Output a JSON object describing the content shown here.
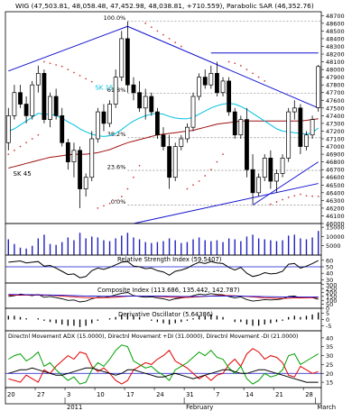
{
  "colors": {
    "up": "#ffffff",
    "down": "#000000",
    "sma_short": "#00c0e0",
    "sma_long": "#a01010",
    "sar": "#d04040",
    "trend": "#1010d0",
    "fib": "#888888",
    "volume": "#2020c0",
    "adx": "#000000",
    "di_plus": "#00a000",
    "di_minus": "#e00000"
  },
  "header": {
    "text": "WIG (47,503.81, 48,058.48, 47,452.98, 48,038.81, +710.559), Parabolic SAR (46,352.76)"
  },
  "main": {
    "labels": {
      "sma_short": "SK 15",
      "sma_long": "SK 45"
    },
    "fib_levels": [
      {
        "value": 48625,
        "label": "100.0%"
      },
      {
        "value": 47690,
        "label": "61.8%"
      },
      {
        "value": 47115,
        "label": "38.2%"
      },
      {
        "value": 46690,
        "label": "23.6%"
      },
      {
        "value": 46240,
        "label": "0.0%"
      }
    ]
  },
  "panels": {
    "rsi": {
      "title": "Relative Strength Index (59.5407)",
      "ticks": [
        "60",
        "50",
        "40",
        "30"
      ]
    },
    "cci": {
      "title": "Composite Index (113.686, 135.442, 142.787)",
      "ticks": [
        "300",
        "250",
        "200",
        "150",
        "100",
        "50",
        "0"
      ]
    },
    "dosc": {
      "title": "Derivative Oscillator (5.64386)",
      "ticks": [
        "5",
        "0",
        "-5"
      ]
    },
    "dmi": {
      "title": "Directnl Movement ADX (15.0000), Directnl Movement +DI (31.0000), Directnl Movement -DI (21.0000)",
      "ticks": [
        "40",
        "35",
        "30",
        "25",
        "20",
        "15"
      ]
    }
  },
  "xaxis": {
    "day_ticks": [
      {
        "i": 0,
        "label": "20"
      },
      {
        "i": 5,
        "label": "27"
      },
      {
        "i": 10,
        "label": "3"
      },
      {
        "i": 15,
        "label": "10"
      },
      {
        "i": 20,
        "label": "17"
      },
      {
        "i": 25,
        "label": "24"
      },
      {
        "i": 30,
        "label": "31"
      },
      {
        "i": 35,
        "label": "7"
      },
      {
        "i": 40,
        "label": "14"
      },
      {
        "i": 45,
        "label": "21"
      },
      {
        "i": 50,
        "label": "28"
      }
    ],
    "months": [
      {
        "i": 10,
        "label": "2011"
      },
      {
        "i": 30,
        "label": "February"
      },
      {
        "i": 52,
        "label": "March"
      }
    ]
  },
  "chart_data": {
    "type": "candlestick",
    "title": "WIG",
    "ylim": [
      46000,
      48750
    ],
    "yticks": [
      48700,
      48600,
      48500,
      48400,
      48300,
      48200,
      48100,
      48000,
      47900,
      47800,
      47700,
      47600,
      47500,
      47400,
      47300,
      47200,
      47100,
      47000,
      46900,
      46800,
      46700,
      46600,
      46500,
      46400,
      46300,
      46200,
      46100,
      46000
    ],
    "ohlc": [
      [
        47050,
        47500,
        46950,
        47400
      ],
      [
        47400,
        47800,
        47350,
        47700
      ],
      [
        47700,
        47800,
        47500,
        47550
      ],
      [
        47550,
        47650,
        47300,
        47400
      ],
      [
        47400,
        47850,
        47350,
        47800
      ],
      [
        47800,
        48050,
        47700,
        47950
      ],
      [
        47950,
        48000,
        47300,
        47350
      ],
      [
        47350,
        47700,
        47250,
        47650
      ],
      [
        47650,
        47750,
        47350,
        47400
      ],
      [
        47400,
        47500,
        47000,
        47050
      ],
      [
        47050,
        47100,
        46700,
        46800
      ],
      [
        46800,
        47050,
        46600,
        46950
      ],
      [
        46950,
        47000,
        46200,
        46450
      ],
      [
        46450,
        46650,
        46350,
        46600
      ],
      [
        46600,
        47200,
        46550,
        47100
      ],
      [
        47100,
        47500,
        47050,
        47450
      ],
      [
        47450,
        47550,
        47200,
        47300
      ],
      [
        47300,
        47600,
        47250,
        47550
      ],
      [
        47550,
        48000,
        47500,
        47900
      ],
      [
        47900,
        48500,
        47850,
        48400
      ],
      [
        48400,
        48625,
        47700,
        47800
      ],
      [
        47800,
        47900,
        47600,
        47700
      ],
      [
        47700,
        47850,
        47450,
        47500
      ],
      [
        47500,
        47750,
        47350,
        47650
      ],
      [
        47650,
        47700,
        47400,
        47450
      ],
      [
        47450,
        47500,
        47100,
        47150
      ],
      [
        47150,
        47250,
        46950,
        47000
      ],
      [
        47000,
        47150,
        46450,
        46600
      ],
      [
        46600,
        47050,
        46550,
        47000
      ],
      [
        47000,
        47150,
        46950,
        47100
      ],
      [
        47100,
        47300,
        47050,
        47250
      ],
      [
        47250,
        47700,
        47200,
        47650
      ],
      [
        47650,
        47950,
        47600,
        47900
      ],
      [
        47900,
        48000,
        47750,
        47800
      ],
      [
        47800,
        48050,
        47750,
        47950
      ],
      [
        47950,
        48100,
        47650,
        47700
      ],
      [
        47700,
        47900,
        47650,
        47850
      ],
      [
        47850,
        47900,
        47400,
        47450
      ],
      [
        47450,
        47500,
        47100,
        47150
      ],
      [
        47150,
        47400,
        47100,
        47350
      ],
      [
        47350,
        47500,
        46600,
        46700
      ],
      [
        46700,
        46900,
        46250,
        46400
      ],
      [
        46400,
        46650,
        46350,
        46600
      ],
      [
        46600,
        46900,
        46550,
        46850
      ],
      [
        46850,
        46950,
        46450,
        46550
      ],
      [
        46550,
        46700,
        46400,
        46650
      ],
      [
        46650,
        46900,
        46600,
        46850
      ],
      [
        46850,
        47500,
        46800,
        47450
      ],
      [
        47450,
        47600,
        47350,
        47500
      ],
      [
        47500,
        47550,
        46900,
        47000
      ],
      [
        47000,
        47200,
        46950,
        47150
      ],
      [
        47150,
        47400,
        47100,
        47350
      ],
      [
        47503.81,
        48058.48,
        47452.98,
        48038.81
      ]
    ],
    "sma15": [
      47200,
      47230,
      47280,
      47330,
      47380,
      47430,
      47420,
      47420,
      47400,
      47370,
      47320,
      47280,
      47230,
      47190,
      47160,
      47140,
      47130,
      47140,
      47170,
      47220,
      47280,
      47330,
      47370,
      47400,
      47420,
      47430,
      47420,
      47390,
      47370,
      47360,
      47360,
      47380,
      47420,
      47460,
      47500,
      47530,
      47550,
      47560,
      47550,
      47520,
      47480,
      47430,
      47380,
      47330,
      47280,
      47230,
      47200,
      47190,
      47180,
      47170,
      47160,
      47180,
      47240
    ],
    "sma45": [
      46720,
      46740,
      46760,
      46780,
      46800,
      46820,
      46840,
      46860,
      46870,
      46880,
      46890,
      46900,
      46900,
      46900,
      46910,
      46920,
      46940,
      46960,
      46990,
      47020,
      47050,
      47070,
      47090,
      47110,
      47130,
      47150,
      47160,
      47170,
      47180,
      47190,
      47200,
      47210,
      47230,
      47250,
      47270,
      47290,
      47300,
      47310,
      47320,
      47330,
      47330,
      47330,
      47330,
      47330,
      47330,
      47330,
      47330,
      47330,
      47330,
      47330,
      47340,
      47350,
      47360
    ],
    "sar": [
      46900,
      46950,
      47000,
      47050,
      47100,
      47150,
      48100,
      48080,
      48060,
      48040,
      48000,
      47960,
      47920,
      47880,
      47840,
      46200,
      46230,
      46260,
      46300,
      46350,
      46450,
      46600,
      46750,
      48600,
      48550,
      48500,
      48450,
      48400,
      48350,
      48300,
      46450,
      46500,
      46550,
      46620,
      46700,
      46800,
      46900,
      48100,
      48080,
      48050,
      48000,
      47950,
      47900,
      47850,
      46250,
      46280,
      46310,
      46340,
      46360,
      46380,
      46360,
      46355,
      46352.76
    ],
    "trendlines": [
      {
        "from": [
          0,
          47980
        ],
        "to": [
          20,
          48560
        ]
      },
      {
        "from": [
          20,
          48560
        ],
        "to": [
          52,
          47500
        ]
      },
      {
        "from": [
          34,
          48215
        ],
        "to": [
          52,
          48215
        ]
      },
      {
        "from": [
          41,
          46240
        ],
        "to": [
          52,
          46800
        ]
      },
      {
        "from": [
          21,
          46000
        ],
        "to": [
          52,
          46520
        ]
      }
    ],
    "volume": {
      "ticks": [
        "15000",
        "10000",
        "5000"
      ],
      "ymax": 17000,
      "values": [
        8500,
        6000,
        4000,
        3500,
        5000,
        9000,
        11000,
        6000,
        5500,
        7000,
        9500,
        8000,
        12000,
        9000,
        10000,
        9500,
        8000,
        7500,
        9000,
        10500,
        12000,
        9500,
        8500,
        7000,
        6500,
        7000,
        7500,
        9000,
        8000,
        6500,
        7000,
        8500,
        9500,
        8000,
        7500,
        8000,
        7000,
        9000,
        8500,
        7500,
        10000,
        11000,
        9000,
        8500,
        8000,
        7500,
        8000,
        10500,
        11000,
        9000,
        8500,
        9500,
        13000
      ]
    },
    "rsi": {
      "ylim": [
        25,
        68
      ],
      "values": [
        57,
        58,
        59,
        56,
        57,
        58,
        51,
        52,
        48,
        43,
        38,
        39,
        33,
        35,
        44,
        48,
        46,
        49,
        53,
        57,
        58,
        51,
        50,
        47,
        48,
        44,
        42,
        37,
        43,
        45,
        48,
        53,
        57,
        55,
        58,
        56,
        55,
        49,
        45,
        49,
        40,
        35,
        37,
        41,
        39,
        40,
        43,
        54,
        55,
        48,
        51,
        55,
        59.5407
      ]
    },
    "composite": {
      "ylim": [
        0,
        320
      ],
      "series": [
        {
          "name": "Composite Index",
          "values": [
            150,
            160,
            180,
            170,
            160,
            175,
            140,
            150,
            135,
            120,
            100,
            105,
            80,
            90,
            120,
            140,
            135,
            150,
            170,
            190,
            200,
            160,
            150,
            140,
            145,
            130,
            120,
            100,
            120,
            130,
            140,
            160,
            180,
            170,
            185,
            175,
            170,
            150,
            130,
            145,
            110,
            90,
            100,
            110,
            105,
            110,
            120,
            150,
            155,
            130,
            140,
            135,
            113.686
          ]
        },
        {
          "name": "",
          "values": [
            165,
            165,
            166,
            167,
            167,
            168,
            166,
            164,
            160,
            155,
            150,
            145,
            140,
            135,
            133,
            133,
            134,
            136,
            140,
            146,
            152,
            155,
            156,
            155,
            153,
            150,
            146,
            141,
            138,
            137,
            138,
            141,
            146,
            151,
            156,
            160,
            162,
            161,
            158,
            155,
            150,
            144,
            138,
            133,
            129,
            126,
            125,
            127,
            130,
            131,
            132,
            134,
            135.442
          ]
        },
        {
          "name": "",
          "values": [
            175,
            174,
            173,
            172,
            171,
            170,
            169,
            168,
            166,
            164,
            162,
            160,
            158,
            156,
            154,
            153,
            152,
            152,
            152,
            153,
            154,
            155,
            155,
            155,
            155,
            154,
            153,
            152,
            151,
            150,
            150,
            150,
            151,
            152,
            153,
            154,
            155,
            155,
            154,
            153,
            152,
            151,
            149,
            148,
            146,
            145,
            144,
            143,
            143,
            142,
            142,
            142,
            142.787
          ]
        }
      ]
    },
    "derivative_oscillator": {
      "ylim": [
        -9,
        9
      ],
      "values": [
        3,
        3,
        2,
        1,
        0,
        1,
        -1,
        -2,
        -3,
        -4,
        -5,
        -5,
        -6,
        -5,
        -3,
        -1,
        0,
        1,
        2,
        4,
        5,
        3,
        2,
        0,
        -1,
        -2,
        -3,
        -4,
        -3,
        -2,
        -1,
        1,
        3,
        3,
        4,
        3,
        2,
        0,
        -2,
        -2,
        -4,
        -5,
        -5,
        -4,
        -3,
        -2,
        -1,
        2,
        3,
        2,
        3,
        4,
        5.64386
      ]
    },
    "dmi": {
      "ylim": [
        12,
        44
      ],
      "adx": [
        20,
        21,
        22,
        22,
        23,
        22,
        21,
        20,
        19,
        19,
        20,
        21,
        22,
        23,
        23,
        22,
        21,
        20,
        19,
        20,
        22,
        22,
        21,
        20,
        19,
        18,
        18,
        19,
        20,
        19,
        18,
        17,
        18,
        19,
        20,
        21,
        22,
        22,
        21,
        20,
        20,
        21,
        22,
        22,
        21,
        20,
        19,
        18,
        17,
        16,
        15,
        15,
        15
      ],
      "di_plus": [
        28,
        30,
        31,
        27,
        29,
        32,
        24,
        26,
        22,
        19,
        16,
        18,
        14,
        15,
        22,
        26,
        24,
        28,
        33,
        36,
        35,
        27,
        25,
        23,
        24,
        21,
        19,
        16,
        22,
        24,
        26,
        29,
        32,
        30,
        33,
        29,
        28,
        23,
        20,
        24,
        17,
        14,
        16,
        20,
        18,
        19,
        22,
        30,
        31,
        25,
        27,
        29,
        31
      ],
      "di_minus": [
        17,
        16,
        15,
        19,
        17,
        15,
        22,
        20,
        24,
        27,
        30,
        28,
        32,
        31,
        24,
        21,
        23,
        20,
        16,
        14,
        16,
        22,
        24,
        26,
        25,
        28,
        30,
        33,
        27,
        25,
        23,
        20,
        17,
        19,
        16,
        19,
        20,
        25,
        28,
        24,
        31,
        34,
        32,
        28,
        30,
        29,
        26,
        19,
        18,
        24,
        22,
        20,
        21
      ]
    }
  }
}
